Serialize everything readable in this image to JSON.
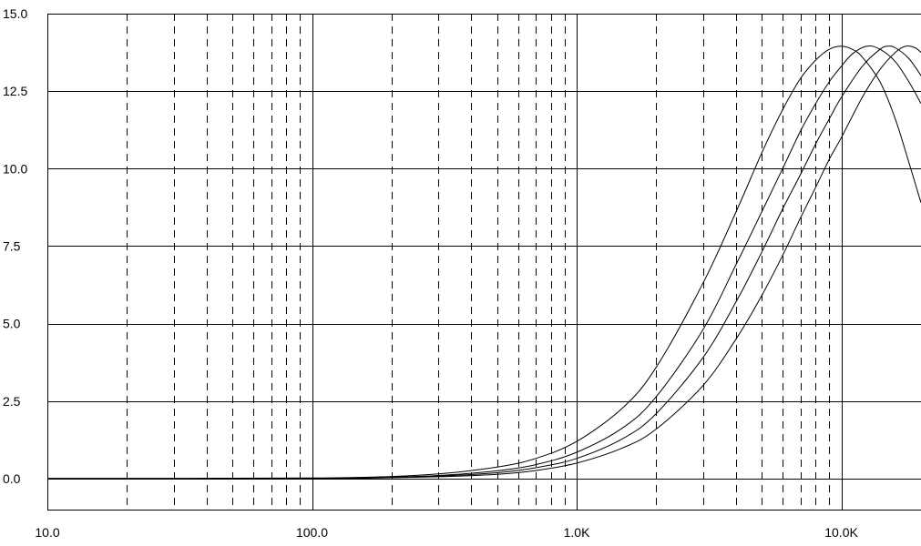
{
  "chart_data": {
    "type": "line",
    "title": "",
    "xlabel": "",
    "ylabel": "",
    "x_scale": "log",
    "xlim": [
      10,
      20000
    ],
    "ylim": [
      -1.0,
      15.0
    ],
    "grid": true,
    "x_major_ticks": [
      10,
      100,
      1000,
      10000
    ],
    "x_tick_labels": [
      "10.0",
      "100.0",
      "1.0K",
      "10.0K"
    ],
    "y_ticks": [
      0.0,
      2.5,
      5.0,
      7.5,
      10.0,
      12.5,
      15.0
    ],
    "y_tick_labels": [
      "0.0",
      "2.5",
      "5.0",
      "7.5",
      "10.0",
      "12.5",
      "15.0"
    ],
    "line_color": "#000000",
    "series": [
      {
        "x": [
          10,
          100,
          200,
          300,
          500,
          700,
          1000,
          1500,
          2000,
          3000,
          4000,
          5000,
          6000,
          7000,
          8000,
          9000,
          10000,
          11000,
          12000,
          14000,
          16000,
          18000,
          20000
        ],
        "values": [
          0.0,
          0.02,
          0.07,
          0.15,
          0.37,
          0.65,
          1.2,
          2.3,
          3.6,
          6.3,
          8.6,
          10.5,
          11.9,
          12.9,
          13.5,
          13.85,
          13.95,
          13.85,
          13.6,
          12.8,
          11.6,
          10.2,
          8.9
        ]
      },
      {
        "x": [
          10,
          100,
          200,
          300,
          500,
          700,
          1000,
          1500,
          2000,
          3000,
          4000,
          5000,
          6000,
          7000,
          8000,
          9000,
          10000,
          11000,
          12500,
          14000,
          16000,
          18000,
          20000
        ],
        "values": [
          0.0,
          0.01,
          0.05,
          0.1,
          0.25,
          0.45,
          0.85,
          1.65,
          2.65,
          4.8,
          6.9,
          8.6,
          10.0,
          11.2,
          12.1,
          12.8,
          13.3,
          13.7,
          13.95,
          13.85,
          13.45,
          12.8,
          12.1
        ]
      },
      {
        "x": [
          10,
          100,
          200,
          300,
          500,
          700,
          1000,
          1500,
          2000,
          3000,
          4000,
          5000,
          6000,
          7000,
          8000,
          9000,
          10000,
          12000,
          14000,
          15000,
          16000,
          18000,
          20000
        ],
        "values": [
          0.0,
          0.01,
          0.04,
          0.08,
          0.19,
          0.35,
          0.65,
          1.3,
          2.1,
          3.9,
          5.7,
          7.3,
          8.7,
          9.8,
          10.8,
          11.6,
          12.3,
          13.3,
          13.85,
          13.95,
          13.9,
          13.55,
          13.0
        ]
      },
      {
        "x": [
          10,
          100,
          200,
          300,
          500,
          700,
          1000,
          1500,
          2000,
          3000,
          4000,
          5000,
          6000,
          7000,
          8000,
          9000,
          10000,
          12000,
          14000,
          16000,
          17500,
          19000,
          20000
        ],
        "values": [
          0.0,
          0.0,
          0.03,
          0.06,
          0.14,
          0.26,
          0.5,
          1.0,
          1.6,
          3.0,
          4.5,
          5.9,
          7.2,
          8.4,
          9.4,
          10.3,
          11.0,
          12.3,
          13.2,
          13.75,
          13.95,
          13.9,
          13.75
        ]
      }
    ]
  }
}
